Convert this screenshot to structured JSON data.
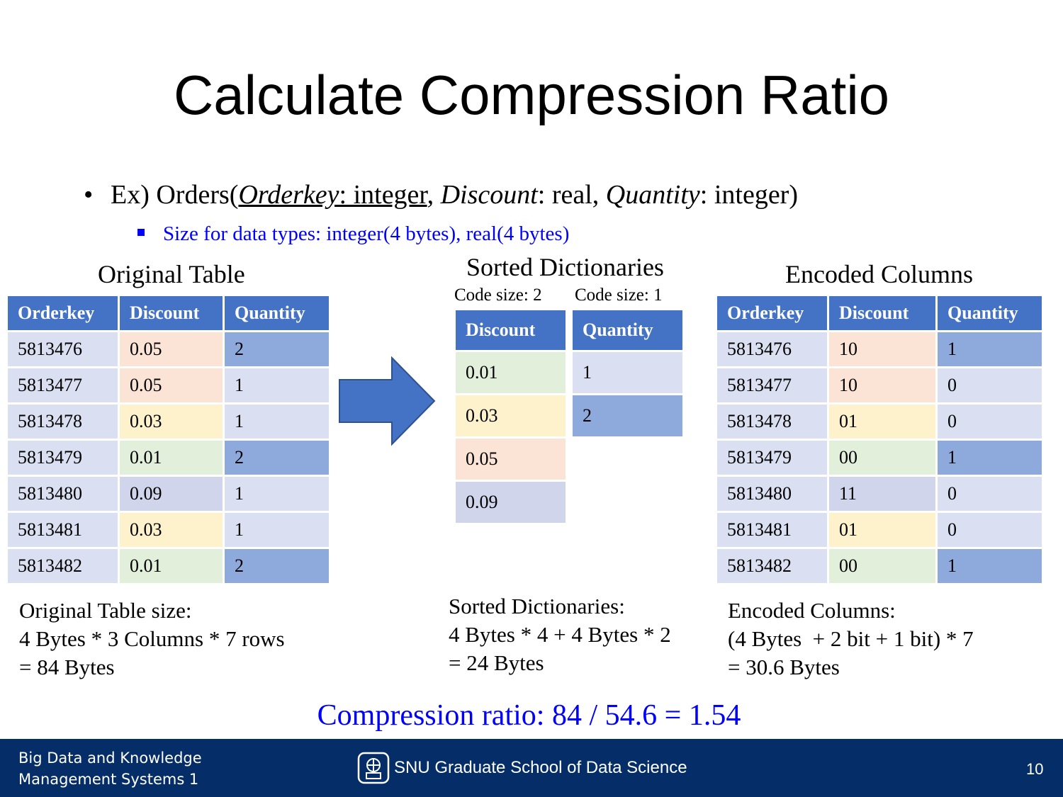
{
  "title": "Calculate Compression Ratio",
  "bullet1": {
    "prefix": "Ex) Orders(",
    "orderkey": "Orderkey",
    "orderkey_type": ": integer",
    "sep1": ", ",
    "discount": "Discount",
    "discount_type": ": real, ",
    "quantity": "Quantity",
    "quantity_type": ": integer)"
  },
  "bullet2": "Size for data types: integer(4 bytes), real(4 bytes)",
  "original": {
    "caption": "Original Table",
    "headers": [
      "Orderkey",
      "Discount",
      "Quantity"
    ],
    "rows": [
      [
        "5813476",
        "0.05",
        "2"
      ],
      [
        "5813477",
        "0.05",
        "1"
      ],
      [
        "5813478",
        "0.03",
        "1"
      ],
      [
        "5813479",
        "0.01",
        "2"
      ],
      [
        "5813480",
        "0.09",
        "1"
      ],
      [
        "5813481",
        "0.03",
        "1"
      ],
      [
        "5813482",
        "0.01",
        "2"
      ]
    ],
    "summary": [
      "Original Table size:",
      "4 Bytes * 3 Columns * 7 rows",
      "= 84 Bytes"
    ]
  },
  "dictionaries": {
    "caption": "Sorted Dictionaries",
    "discount_code_size": "Code size: 2",
    "quantity_code_size": "Code size: 1",
    "discount_header": "Discount",
    "quantity_header": "Quantity",
    "discount_values": [
      "0.01",
      "0.03",
      "0.05",
      "0.09"
    ],
    "quantity_values": [
      "1",
      "2"
    ],
    "summary": [
      "Sorted Dictionaries:",
      "4 Bytes * 4 + 4 Bytes * 2",
      "= 24 Bytes"
    ]
  },
  "encoded": {
    "caption": "Encoded Columns",
    "headers": [
      "Orderkey",
      "Discount",
      "Quantity"
    ],
    "rows": [
      [
        "5813476",
        "10",
        "1"
      ],
      [
        "5813477",
        "10",
        "0"
      ],
      [
        "5813478",
        "01",
        "0"
      ],
      [
        "5813479",
        "00",
        "1"
      ],
      [
        "5813480",
        "11",
        "0"
      ],
      [
        "5813481",
        "01",
        "0"
      ],
      [
        "5813482",
        "00",
        "1"
      ]
    ],
    "summary": [
      "Encoded Columns:",
      "(4 Bytes  + 2 bit + 1 bit) * 7",
      "= 30.6 Bytes"
    ]
  },
  "ratio": "Compression ratio: 84 / 54.6 = 1.54",
  "footer": {
    "course_line1": "Big Data and Knowledge",
    "course_line2": "Management Systems 1",
    "school": "SNU Graduate School of Data Science",
    "page_number": "10"
  },
  "colors": {
    "header_blue": "#4472c4",
    "footer_navy": "#052d67",
    "emphasis_blue": "#0000ff"
  }
}
